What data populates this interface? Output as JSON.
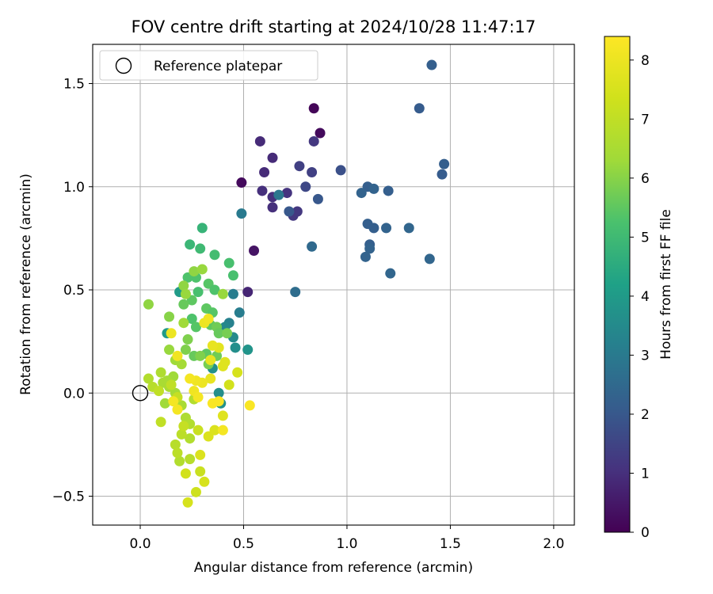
{
  "chart_data": {
    "type": "scatter",
    "title": "FOV centre drift starting at 2024/10/28 11:47:17",
    "xlabel": "Angular distance from reference (arcmin)",
    "ylabel": "Rotation from reference (arcmin)",
    "xlim": [
      -0.23,
      2.1
    ],
    "ylim": [
      -0.64,
      1.69
    ],
    "x_ticks": [
      0.0,
      0.5,
      1.0,
      1.5,
      2.0
    ],
    "x_tick_labels": [
      "0.0",
      "0.5",
      "1.0",
      "1.5",
      "2.0"
    ],
    "y_ticks": [
      -0.5,
      0.0,
      0.5,
      1.0,
      1.5
    ],
    "y_tick_labels": [
      "−0.5",
      "0.0",
      "0.5",
      "1.0",
      "1.5"
    ],
    "grid": true,
    "legend": {
      "placement": "upper-left",
      "entries": [
        "Reference platepar"
      ]
    },
    "reference_point": {
      "x": 0.0,
      "y": 0.0
    },
    "colorbar": {
      "label": "Hours from first FF file",
      "colormap": "viridis",
      "range": [
        0,
        8.4
      ],
      "ticks": [
        0,
        1,
        2,
        3,
        4,
        5,
        6,
        7,
        8
      ],
      "tick_labels": [
        "0",
        "1",
        "2",
        "3",
        "4",
        "5",
        "6",
        "7",
        "8"
      ]
    },
    "points": [
      [
        0.84,
        1.38,
        0.1
      ],
      [
        0.87,
        1.26,
        0.2
      ],
      [
        0.49,
        1.02,
        0.2
      ],
      [
        0.55,
        0.69,
        0.4
      ],
      [
        0.52,
        0.49,
        0.8
      ],
      [
        0.58,
        1.22,
        0.9
      ],
      [
        0.64,
        1.14,
        0.9
      ],
      [
        0.6,
        1.07,
        0.9
      ],
      [
        0.59,
        0.98,
        1.0
      ],
      [
        0.64,
        0.95,
        1.0
      ],
      [
        0.64,
        0.9,
        1.0
      ],
      [
        0.71,
        0.97,
        1.1
      ],
      [
        0.74,
        0.86,
        1.2
      ],
      [
        0.76,
        0.88,
        1.2
      ],
      [
        0.84,
        1.22,
        1.2
      ],
      [
        0.77,
        1.1,
        1.4
      ],
      [
        0.83,
        1.07,
        1.4
      ],
      [
        0.8,
        1.0,
        1.6
      ],
      [
        0.97,
        1.08,
        1.8
      ],
      [
        0.86,
        0.94,
        2.0
      ],
      [
        0.72,
        0.88,
        2.0
      ],
      [
        1.41,
        1.59,
        2.2
      ],
      [
        1.35,
        1.38,
        2.1
      ],
      [
        1.47,
        1.11,
        2.2
      ],
      [
        1.46,
        1.06,
        2.1
      ],
      [
        1.1,
        1.0,
        2.2
      ],
      [
        1.13,
        0.99,
        2.3
      ],
      [
        1.2,
        0.98,
        2.2
      ],
      [
        1.07,
        0.97,
        2.3
      ],
      [
        1.1,
        0.82,
        2.2
      ],
      [
        1.13,
        0.8,
        2.2
      ],
      [
        1.19,
        0.8,
        2.3
      ],
      [
        1.3,
        0.8,
        2.4
      ],
      [
        1.11,
        0.72,
        2.2
      ],
      [
        1.11,
        0.7,
        2.3
      ],
      [
        1.09,
        0.66,
        2.3
      ],
      [
        1.4,
        0.65,
        2.4
      ],
      [
        1.21,
        0.58,
        2.4
      ],
      [
        0.83,
        0.71,
        2.5
      ],
      [
        0.75,
        0.49,
        2.6
      ],
      [
        0.67,
        0.96,
        2.9
      ],
      [
        0.49,
        0.87,
        3.0
      ],
      [
        0.48,
        0.39,
        3.1
      ],
      [
        0.45,
        0.48,
        3.1
      ],
      [
        0.43,
        0.34,
        3.2
      ],
      [
        0.41,
        0.32,
        3.4
      ],
      [
        0.45,
        0.27,
        3.5
      ],
      [
        0.46,
        0.22,
        3.6
      ],
      [
        0.52,
        0.21,
        3.8
      ],
      [
        0.35,
        0.12,
        3.7
      ],
      [
        0.38,
        0.0,
        3.6
      ],
      [
        0.39,
        -0.05,
        3.7
      ],
      [
        0.13,
        0.29,
        4.0
      ],
      [
        0.19,
        0.49,
        4.0
      ],
      [
        0.3,
        0.8,
        4.8
      ],
      [
        0.24,
        0.72,
        4.9
      ],
      [
        0.29,
        0.7,
        5.0
      ],
      [
        0.36,
        0.67,
        5.1
      ],
      [
        0.43,
        0.63,
        5.2
      ],
      [
        0.45,
        0.57,
        5.2
      ],
      [
        0.23,
        0.56,
        5.3
      ],
      [
        0.27,
        0.56,
        5.3
      ],
      [
        0.33,
        0.53,
        5.4
      ],
      [
        0.36,
        0.5,
        5.3
      ],
      [
        0.28,
        0.49,
        5.2
      ],
      [
        0.25,
        0.45,
        5.5
      ],
      [
        0.21,
        0.43,
        5.6
      ],
      [
        0.32,
        0.41,
        5.5
      ],
      [
        0.35,
        0.39,
        5.4
      ],
      [
        0.25,
        0.36,
        5.3
      ],
      [
        0.27,
        0.32,
        5.4
      ],
      [
        0.34,
        0.33,
        5.5
      ],
      [
        0.37,
        0.32,
        5.7
      ],
      [
        0.38,
        0.29,
        5.6
      ],
      [
        0.42,
        0.29,
        5.8
      ],
      [
        0.23,
        0.26,
        5.9
      ],
      [
        0.26,
        0.18,
        5.6
      ],
      [
        0.32,
        0.19,
        5.5
      ],
      [
        0.29,
        0.18,
        5.9
      ],
      [
        0.33,
        0.14,
        5.8
      ],
      [
        0.37,
        0.18,
        5.7
      ],
      [
        0.22,
        0.21,
        5.9
      ],
      [
        0.14,
        0.37,
        6.0
      ],
      [
        0.21,
        0.52,
        6.1
      ],
      [
        0.26,
        0.59,
        6.1
      ],
      [
        0.3,
        0.6,
        6.2
      ],
      [
        0.22,
        0.48,
        6.2
      ],
      [
        0.4,
        0.48,
        6.2
      ],
      [
        0.04,
        0.43,
        6.1
      ],
      [
        0.21,
        0.34,
        6.3
      ],
      [
        0.14,
        0.21,
        6.2
      ],
      [
        0.17,
        0.16,
        6.3
      ],
      [
        0.2,
        0.14,
        6.4
      ],
      [
        0.16,
        0.08,
        6.3
      ],
      [
        0.13,
        0.06,
        6.4
      ],
      [
        0.11,
        0.05,
        6.5
      ],
      [
        0.14,
        0.03,
        6.5
      ],
      [
        0.1,
        0.1,
        6.6
      ],
      [
        0.17,
        0.0,
        6.4
      ],
      [
        0.12,
        -0.05,
        6.3
      ],
      [
        0.2,
        -0.06,
        6.5
      ],
      [
        0.22,
        -0.12,
        6.6
      ],
      [
        0.26,
        -0.03,
        6.7
      ],
      [
        0.24,
        -0.15,
        6.7
      ],
      [
        0.24,
        -0.22,
        6.7
      ],
      [
        0.19,
        -0.33,
        6.7
      ],
      [
        0.24,
        -0.32,
        6.8
      ],
      [
        0.17,
        -0.25,
        6.8
      ],
      [
        0.18,
        -0.29,
        6.9
      ],
      [
        0.2,
        -0.2,
        6.9
      ],
      [
        0.04,
        0.07,
        6.7
      ],
      [
        0.06,
        0.03,
        6.8
      ],
      [
        0.09,
        0.01,
        7.0
      ],
      [
        0.15,
        0.04,
        7.0
      ],
      [
        0.1,
        -0.14,
        7.0
      ],
      [
        0.18,
        -0.02,
        7.1
      ],
      [
        0.21,
        -0.16,
        7.1
      ],
      [
        0.28,
        -0.18,
        7.2
      ],
      [
        0.29,
        -0.38,
        7.2
      ],
      [
        0.27,
        -0.48,
        7.3
      ],
      [
        0.22,
        -0.39,
        7.4
      ],
      [
        0.31,
        -0.43,
        7.5
      ],
      [
        0.23,
        -0.53,
        7.5
      ],
      [
        0.29,
        -0.3,
        7.6
      ],
      [
        0.33,
        -0.21,
        7.6
      ],
      [
        0.36,
        -0.18,
        7.6
      ],
      [
        0.4,
        -0.11,
        7.7
      ],
      [
        0.43,
        0.04,
        7.4
      ],
      [
        0.47,
        0.1,
        7.5
      ],
      [
        0.41,
        0.15,
        7.7
      ],
      [
        0.38,
        0.22,
        7.8
      ],
      [
        0.35,
        0.23,
        7.9
      ],
      [
        0.34,
        0.16,
        7.9
      ],
      [
        0.4,
        0.13,
        7.7
      ],
      [
        0.34,
        0.07,
        7.9
      ],
      [
        0.3,
        0.05,
        8.0
      ],
      [
        0.27,
        0.06,
        8.1
      ],
      [
        0.26,
        0.01,
        8.1
      ],
      [
        0.28,
        -0.02,
        8.2
      ],
      [
        0.31,
        0.34,
        8.0
      ],
      [
        0.33,
        0.36,
        8.1
      ],
      [
        0.15,
        0.29,
        8.0
      ],
      [
        0.18,
        0.18,
        8.1
      ],
      [
        0.16,
        -0.04,
        8.2
      ],
      [
        0.18,
        -0.08,
        8.2
      ],
      [
        0.24,
        0.07,
        8.2
      ],
      [
        0.35,
        -0.05,
        8.3
      ],
      [
        0.38,
        -0.04,
        8.3
      ],
      [
        0.4,
        -0.18,
        8.2
      ],
      [
        0.53,
        -0.06,
        8.3
      ]
    ]
  }
}
